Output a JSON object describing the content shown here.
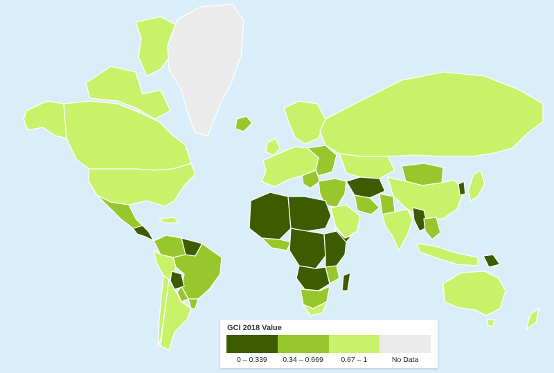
{
  "legend": {
    "title": "GCI 2018 Value",
    "classes": [
      {
        "label": "0 – 0.339",
        "color": "#3d5c00"
      },
      {
        "label": "0.34 – 0.669",
        "color": "#98c72d"
      },
      {
        "label": "0.67 – 1",
        "color": "#c8f26a"
      },
      {
        "label": "No Data",
        "color": "#ebebeb"
      }
    ]
  },
  "colors": {
    "ocean": "#d9eef9",
    "borders": "#ffffff"
  }
}
